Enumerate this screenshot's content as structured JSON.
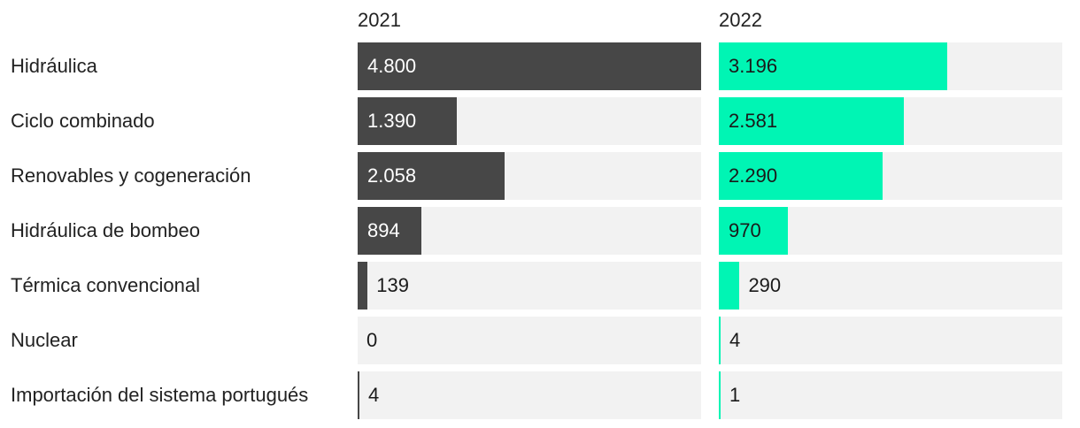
{
  "chart_data": {
    "type": "bar",
    "orientation": "horizontal",
    "layout": "small-multiples",
    "categories": [
      "Hidráulica",
      "Ciclo combinado",
      "Renovables y cogeneración",
      "Hidráulica de bombeo",
      "Térmica convencional",
      "Nuclear",
      "Importación del sistema portugués"
    ],
    "series": [
      {
        "name": "2021",
        "color": "#474747",
        "values": [
          4800,
          1390,
          2058,
          894,
          139,
          0,
          4
        ],
        "labels": [
          "4.800",
          "1.390",
          "2.058",
          "894",
          "139",
          "0",
          "4"
        ]
      },
      {
        "name": "2022",
        "color": "#00f5b4",
        "values": [
          3196,
          2581,
          2290,
          970,
          290,
          4,
          1
        ],
        "labels": [
          "3.196",
          "2.581",
          "2.290",
          "970",
          "290",
          "4",
          "1"
        ]
      }
    ],
    "xlim": [
      0,
      4800
    ],
    "track_color": "#f2f2f2",
    "grid": false,
    "legend": "none"
  }
}
